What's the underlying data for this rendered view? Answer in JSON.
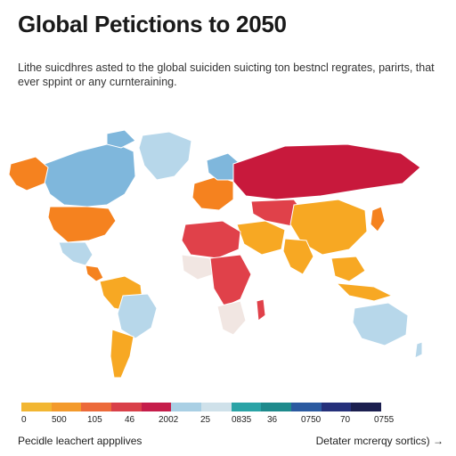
{
  "header": {
    "title": "Global Petictions to 2050",
    "subtitle": "Lithe suicdhres asted to the global suiciden suicting ton bestncl regrates, parirts, that ever sppint or any curnteraining."
  },
  "colors": {
    "ocean": "#ffffff",
    "orange": "#f5821f",
    "amber": "#f7a823",
    "crimson": "#c8193c",
    "red": "#e0414a",
    "lightblue": "#7fb7dc",
    "paleblue": "#b7d7ea",
    "pale": "#f1e6e2"
  },
  "legend": {
    "colors": [
      "#f2b632",
      "#f39a2c",
      "#ec6a3a",
      "#d94049",
      "#c51d4a",
      "#a9cfe4",
      "#cfe1ea",
      "#2aa3a6",
      "#1e8a8c",
      "#2b5aa0",
      "#25307a",
      "#1b1f4f"
    ],
    "labels": [
      "0",
      "500",
      "105",
      "46",
      "2002",
      "25",
      "0835",
      "36",
      "0750",
      "70",
      "0755"
    ]
  },
  "footer": {
    "left": "Pecidle leachert appplives",
    "right": "Detater mcrerqy sortics) →"
  }
}
